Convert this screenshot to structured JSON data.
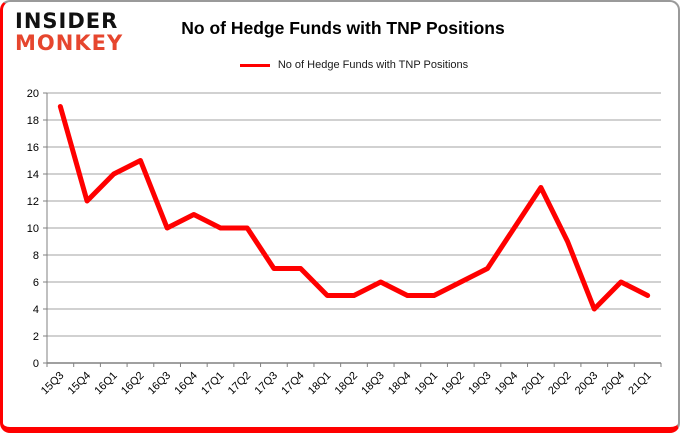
{
  "logo": {
    "line1": "INSIDER",
    "line2": "MONKEY",
    "line1_color": "#111111",
    "line2_color": "#E6462E"
  },
  "chart_data": {
    "type": "line",
    "title": "No of Hedge Funds with TNP Positions",
    "categories": [
      "15Q3",
      "15Q4",
      "16Q1",
      "16Q2",
      "16Q3",
      "16Q4",
      "17Q1",
      "17Q2",
      "17Q3",
      "17Q4",
      "18Q1",
      "18Q2",
      "18Q3",
      "18Q4",
      "19Q1",
      "19Q2",
      "19Q3",
      "19Q4",
      "20Q1",
      "20Q2",
      "20Q3",
      "20Q4",
      "21Q1"
    ],
    "series": [
      {
        "name": "No of Hedge Funds with TNP Positions",
        "values": [
          19,
          12,
          14,
          15,
          10,
          11,
          10,
          10,
          7,
          7,
          5,
          5,
          6,
          5,
          5,
          6,
          7,
          10,
          13,
          9,
          4,
          6,
          5
        ],
        "color": "#FF0000"
      }
    ],
    "xlabel": "",
    "ylabel": "",
    "ylim": [
      0,
      20
    ],
    "ytick_step": 2,
    "grid": true,
    "legend_position": "top",
    "gridline_color": "#A3A3A3",
    "axis_color": "#808080",
    "label_color": "#000000"
  }
}
